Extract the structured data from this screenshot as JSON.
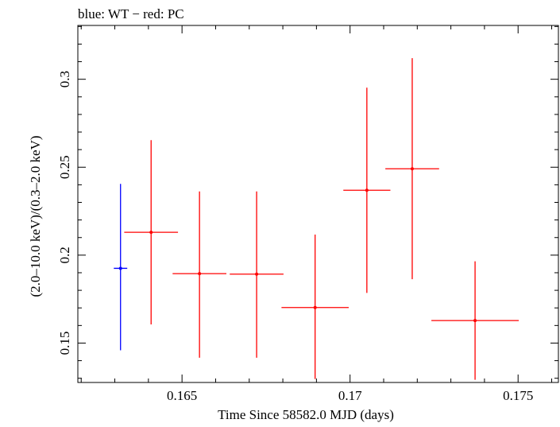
{
  "chart_data": {
    "type": "scatter",
    "title": "blue: WT − red: PC",
    "xlabel": "Time Since 58582.0 MJD (days)",
    "ylabel": "(2.0–10.0 keV)/(0.3–2.0 keV)",
    "xlim": [
      0.1619,
      0.1762
    ],
    "ylim": [
      0.1276,
      0.3306
    ],
    "x_ticks": [
      {
        "value": 0.165,
        "label": "0.165"
      },
      {
        "value": 0.17,
        "label": "0.17"
      },
      {
        "value": 0.175,
        "label": "0.175"
      }
    ],
    "y_ticks": [
      {
        "value": 0.15,
        "label": "0.15"
      },
      {
        "value": 0.2,
        "label": "0.2"
      },
      {
        "value": 0.25,
        "label": "0.25"
      },
      {
        "value": 0.3,
        "label": "0.3"
      }
    ],
    "series": [
      {
        "name": "WT",
        "color": "#0000ff",
        "points": [
          {
            "x": 0.16317,
            "xerr": 0.0002,
            "y": 0.1925,
            "ylo": 0.1459,
            "yhi": 0.2405
          }
        ]
      },
      {
        "name": "PC",
        "color": "#ff0000",
        "points": [
          {
            "x": 0.16408,
            "xerr": 0.0008,
            "y": 0.213,
            "ylo": 0.1606,
            "yhi": 0.2654
          },
          {
            "x": 0.16552,
            "xerr": 0.0008,
            "y": 0.1895,
            "ylo": 0.1417,
            "yhi": 0.2362
          },
          {
            "x": 0.16722,
            "xerr": 0.0008,
            "y": 0.1892,
            "ylo": 0.1417,
            "yhi": 0.2362
          },
          {
            "x": 0.16896,
            "xerr": 0.001,
            "y": 0.1702,
            "ylo": 0.1296,
            "yhi": 0.2117
          },
          {
            "x": 0.1705,
            "xerr": 0.0007,
            "y": 0.2369,
            "ylo": 0.1785,
            "yhi": 0.2952
          },
          {
            "x": 0.17185,
            "xerr": 0.0008,
            "y": 0.2491,
            "ylo": 0.1863,
            "yhi": 0.312
          },
          {
            "x": 0.17372,
            "xerr": 0.0013,
            "y": 0.1628,
            "ylo": 0.1291,
            "yhi": 0.1965
          }
        ]
      }
    ]
  }
}
